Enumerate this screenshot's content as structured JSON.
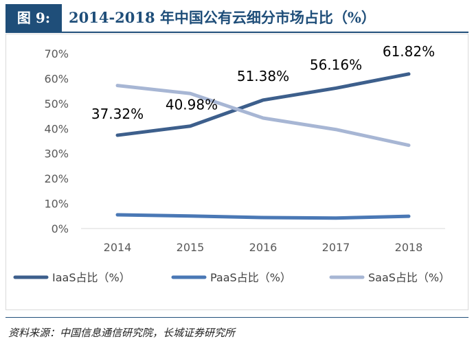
{
  "header": {
    "figure_label": "图 9:",
    "title": "2014-2018 年中国公有云细分市场占比（%）"
  },
  "source": "资料来源：中国信息通信研究院，长城证券研究所",
  "colors": {
    "header_bg": "#1f4e79",
    "iaas": "#3d5f8c",
    "paas": "#4a78b5",
    "saas": "#a7b6d4"
  },
  "chart_data": {
    "type": "line",
    "categories": [
      "2014",
      "2015",
      "2016",
      "2017",
      "2018"
    ],
    "series": [
      {
        "name": "IaaS占比（%）",
        "values": [
          37.32,
          40.98,
          51.38,
          56.16,
          61.82
        ],
        "data_labels": [
          "37.32%",
          "40.98%",
          "51.38%",
          "56.16%",
          "61.82%"
        ],
        "color": "#3d5f8c"
      },
      {
        "name": "PaaS占比（%）",
        "values": [
          5.5,
          5.0,
          4.4,
          4.2,
          4.9
        ],
        "color": "#4a78b5"
      },
      {
        "name": "SaaS占比（%）",
        "values": [
          57.2,
          54.0,
          44.2,
          39.6,
          33.3
        ],
        "color": "#a7b6d4"
      }
    ],
    "yticks": [
      "0%",
      "10%",
      "20%",
      "30%",
      "40%",
      "50%",
      "60%",
      "70%"
    ],
    "ylim": [
      0,
      70
    ],
    "legend_position": "bottom",
    "grid": false
  }
}
